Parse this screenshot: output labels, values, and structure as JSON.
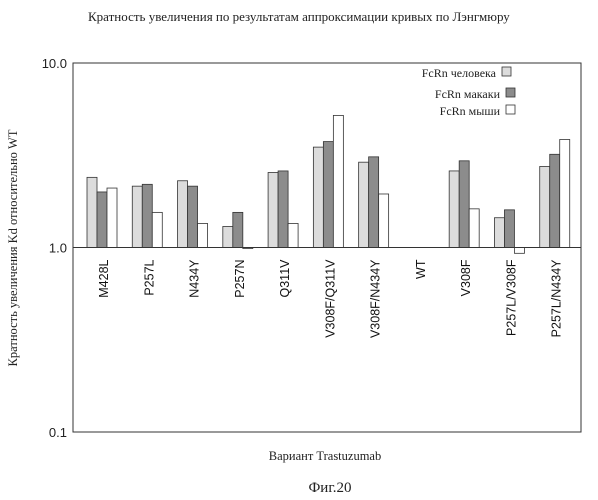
{
  "chart_data": {
    "type": "bar",
    "title": "Кратность увеличения по результатам аппроксимации кривых по Лэнгмюру",
    "ylabel": "Кратность увеличения Kd относительно  WT",
    "xlabel": "Вариант Trastuzumab",
    "yscale": "log",
    "ylim": [
      0.1,
      10.0
    ],
    "yticks": [
      "10.0",
      "1.0",
      "0.1"
    ],
    "categories": [
      "M428L",
      "P257L",
      "N434Y",
      "P257N",
      "Q311V",
      "V308F/Q311V",
      "V308F/N434Y",
      "WT",
      "V308F",
      "P257L/V308F",
      "P257L/N434Y"
    ],
    "series": [
      {
        "name": "FcRn человека",
        "color": "#dcdcdc",
        "values": [
          2.4,
          2.15,
          2.3,
          1.3,
          2.55,
          3.5,
          2.9,
          null,
          2.6,
          1.45,
          2.75
        ]
      },
      {
        "name": "FcRn макаки",
        "color": "#8c8c8c",
        "values": [
          2.0,
          2.2,
          2.15,
          1.55,
          2.6,
          3.75,
          3.1,
          null,
          2.95,
          1.6,
          3.2
        ]
      },
      {
        "name": "FcRn мыши",
        "color": "#ffffff",
        "values": [
          2.1,
          1.55,
          1.35,
          0.99,
          1.35,
          5.2,
          1.95,
          null,
          1.62,
          0.93,
          3.85
        ]
      }
    ],
    "legend_position": "top-right",
    "grid": false,
    "reference_line": 1.0
  },
  "caption": "Фиг.20"
}
